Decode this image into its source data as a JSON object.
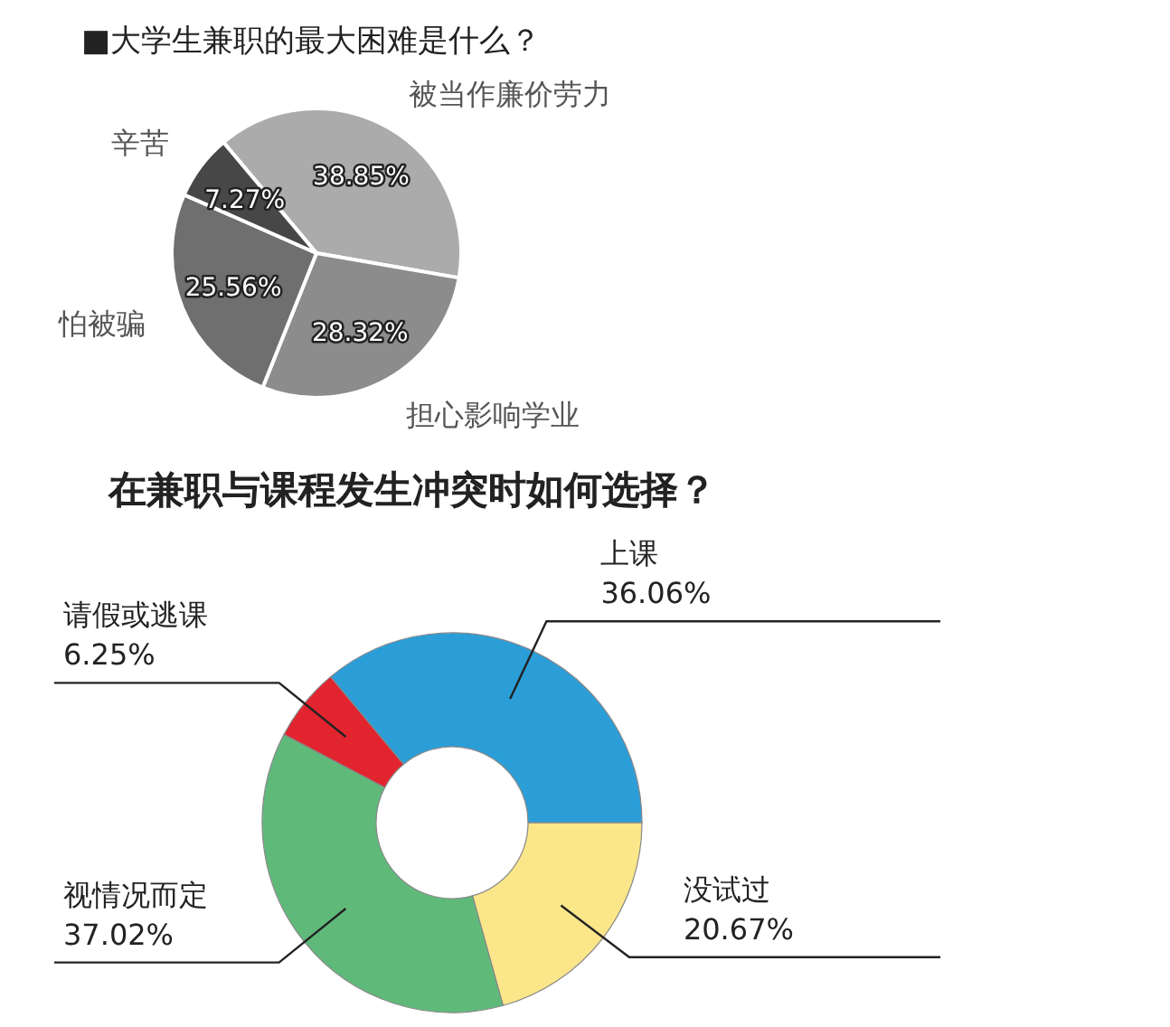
{
  "chart_data": [
    {
      "type": "pie",
      "title": "■大学生兼职的最大困难是什么？",
      "categories": [
        "被当作廉价劳力",
        "担心影响学业",
        "怕被骗",
        "辛苦"
      ],
      "values": [
        38.85,
        28.32,
        25.56,
        7.27
      ],
      "colors": [
        "#ababab",
        "#8c8c8c",
        "#6f6f6f",
        "#474747"
      ],
      "value_labels": [
        "38.85%",
        "28.32%",
        "25.56%",
        "7.27%"
      ]
    },
    {
      "type": "donut",
      "title": "在兼职与课程发生冲突时如何选择？",
      "categories": [
        "上课",
        "没试过",
        "视情况而定",
        "请假或逃课"
      ],
      "values": [
        36.06,
        20.67,
        37.02,
        6.25
      ],
      "colors": [
        "#2b9ed8",
        "#fbe68a",
        "#5fba7a",
        "#e2242f"
      ],
      "value_labels": [
        "36.06%",
        "20.67%",
        "37.02%",
        "6.25%"
      ]
    }
  ]
}
